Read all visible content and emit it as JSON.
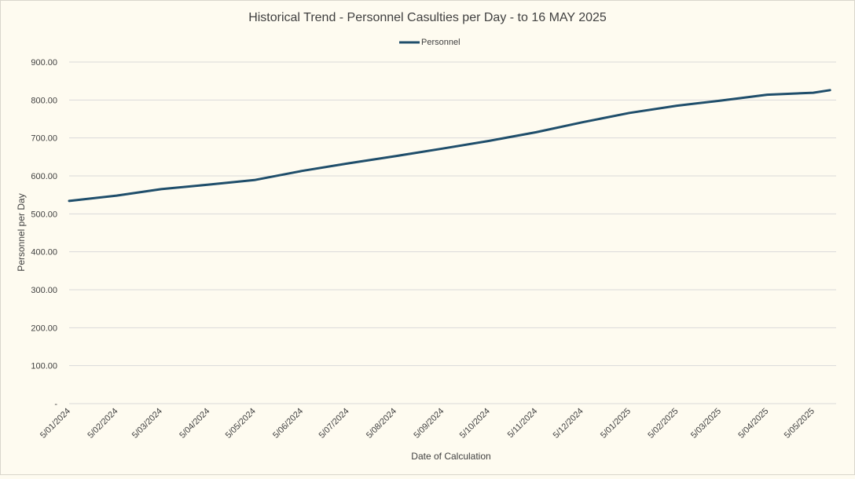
{
  "chart_data": {
    "type": "line",
    "title": "Historical Trend - Personnel Casulties per Day - to 16 MAY 2025",
    "xlabel": "Date of Calculation",
    "ylabel": "Personnel per Day",
    "ylim": [
      0,
      900
    ],
    "grid": true,
    "legend": "top",
    "y_ticks": [
      "-",
      "100.00",
      "200.00",
      "300.00",
      "400.00",
      "500.00",
      "600.00",
      "700.00",
      "800.00",
      "900.00"
    ],
    "x_ticks": [
      "5/01/2024",
      "5/02/2024",
      "5/03/2024",
      "5/04/2024",
      "5/05/2024",
      "5/06/2024",
      "5/07/2024",
      "5/08/2024",
      "5/09/2024",
      "5/10/2024",
      "5/11/2024",
      "5/12/2024",
      "5/01/2025",
      "5/02/2025",
      "5/03/2025",
      "5/04/2025",
      "5/05/2025"
    ],
    "series": [
      {
        "name": "Personnel",
        "color": "#1f4e6b",
        "x": [
          "5/01/2024",
          "5/02/2024",
          "5/03/2024",
          "5/04/2024",
          "5/05/2024",
          "5/06/2024",
          "5/07/2024",
          "5/08/2024",
          "5/09/2024",
          "5/10/2024",
          "5/11/2024",
          "5/12/2024",
          "5/01/2025",
          "5/02/2025",
          "5/03/2025",
          "5/04/2025",
          "5/05/2025",
          "16/05/2025"
        ],
        "values": [
          534,
          548,
          565,
          577,
          589,
          613,
          633,
          652,
          672,
          692,
          715,
          741,
          766,
          785,
          798,
          814,
          819,
          826
        ]
      }
    ]
  }
}
